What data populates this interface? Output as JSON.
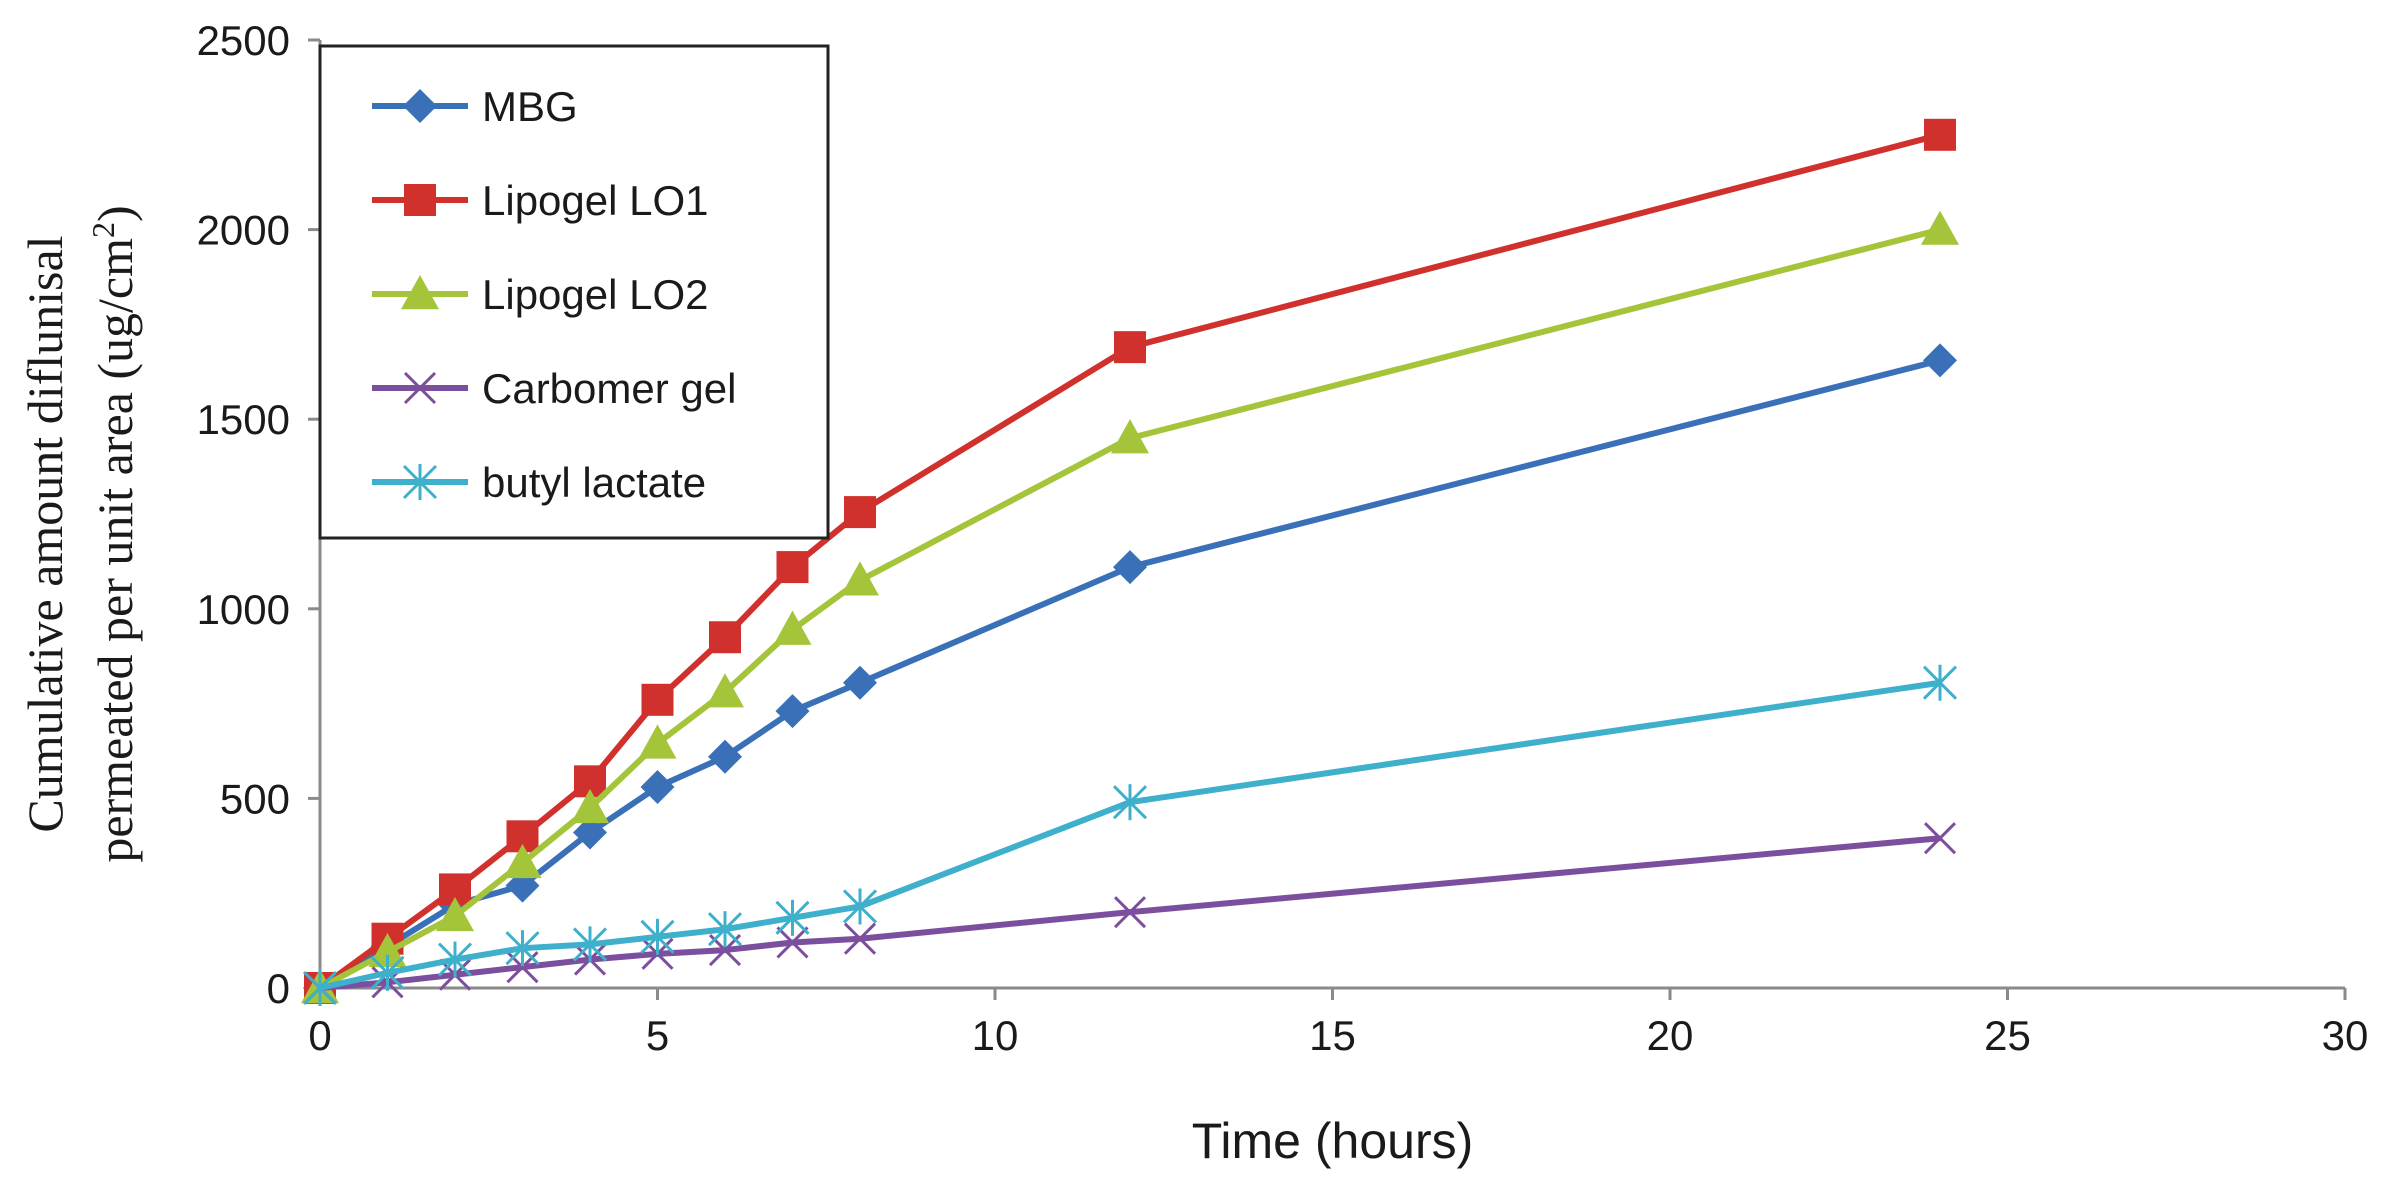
{
  "chart_data": {
    "type": "line",
    "title": "",
    "xlabel": "Time (hours)",
    "ylabel_line1": "Cumulative amount diflunisal",
    "ylabel_line2_prefix": "permeated per unit area (ug/cm",
    "ylabel_superscript": "2",
    "ylabel_line2_suffix": ")",
    "xlim": [
      0,
      30
    ],
    "ylim": [
      0,
      2500
    ],
    "x_ticks": [
      0,
      5,
      10,
      15,
      20,
      25,
      30
    ],
    "y_ticks": [
      0,
      500,
      1000,
      1500,
      2000,
      2500
    ],
    "grid": false,
    "legend_position": "top-left",
    "series": [
      {
        "name": "MBG",
        "color": "#3a70b8",
        "marker": "diamond",
        "x": [
          0,
          1,
          2,
          3,
          4,
          5,
          6,
          7,
          8,
          12,
          24
        ],
        "y": [
          0,
          110,
          220,
          270,
          410,
          530,
          610,
          730,
          805,
          1110,
          1655
        ]
      },
      {
        "name": "Lipogel LO1",
        "color": "#d0312d",
        "marker": "square",
        "x": [
          0,
          1,
          2,
          3,
          4,
          5,
          6,
          7,
          8,
          12,
          24
        ],
        "y": [
          0,
          130,
          260,
          400,
          545,
          760,
          925,
          1110,
          1255,
          1690,
          2250
        ]
      },
      {
        "name": "Lipogel LO2",
        "color": "#a4c43a",
        "marker": "triangle",
        "x": [
          0,
          1,
          2,
          3,
          4,
          5,
          6,
          7,
          8,
          12,
          24
        ],
        "y": [
          0,
          95,
          190,
          330,
          475,
          645,
          780,
          945,
          1075,
          1450,
          2000
        ]
      },
      {
        "name": "Carbomer gel",
        "color": "#7c4f9e",
        "marker": "x",
        "x": [
          0,
          1,
          2,
          3,
          4,
          5,
          6,
          7,
          8,
          12,
          24
        ],
        "y": [
          0,
          15,
          35,
          55,
          75,
          90,
          100,
          120,
          130,
          200,
          395
        ]
      },
      {
        "name": "butyl lactate",
        "color": "#3fb0cc",
        "marker": "star",
        "x": [
          0,
          1,
          2,
          3,
          4,
          5,
          6,
          7,
          8,
          12,
          24
        ],
        "y": [
          0,
          40,
          75,
          105,
          115,
          135,
          155,
          185,
          215,
          490,
          805
        ]
      }
    ]
  }
}
